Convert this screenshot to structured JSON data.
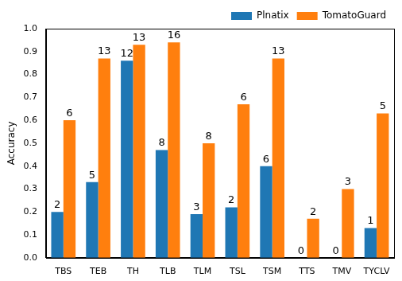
{
  "chart_data": {
    "type": "bar",
    "y_label": "Accuracy",
    "categories": [
      "TBS",
      "TEB",
      "TH",
      "TLB",
      "TLM",
      "TSL",
      "TSM",
      "TTS",
      "TMV",
      "TYCLV"
    ],
    "series": [
      {
        "name": "Plnatix",
        "color": "#1f77b4",
        "values": [
          0.2,
          0.33,
          0.86,
          0.47,
          0.19,
          0.22,
          0.4,
          0,
          0,
          0.13
        ],
        "counts": [
          2,
          5,
          12,
          8,
          3,
          2,
          6,
          0,
          0,
          1
        ]
      },
      {
        "name": "TomatoGuard",
        "color": "#ff7f0e",
        "values": [
          0.6,
          0.87,
          0.93,
          0.94,
          0.5,
          0.67,
          0.87,
          0.17,
          0.3,
          0.63
        ],
        "counts": [
          6,
          13,
          13,
          16,
          8,
          6,
          13,
          2,
          3,
          5
        ]
      }
    ],
    "ylim": [
      0,
      1
    ],
    "yticks": [
      {
        "value": 0,
        "label": "0.0"
      },
      0.1,
      0.2,
      0.3,
      0.4,
      0.5,
      0.6,
      0.7,
      0.8,
      0.9,
      {
        "value": 1,
        "label": "1.0"
      }
    ],
    "grid": false,
    "legend": "upper right"
  }
}
